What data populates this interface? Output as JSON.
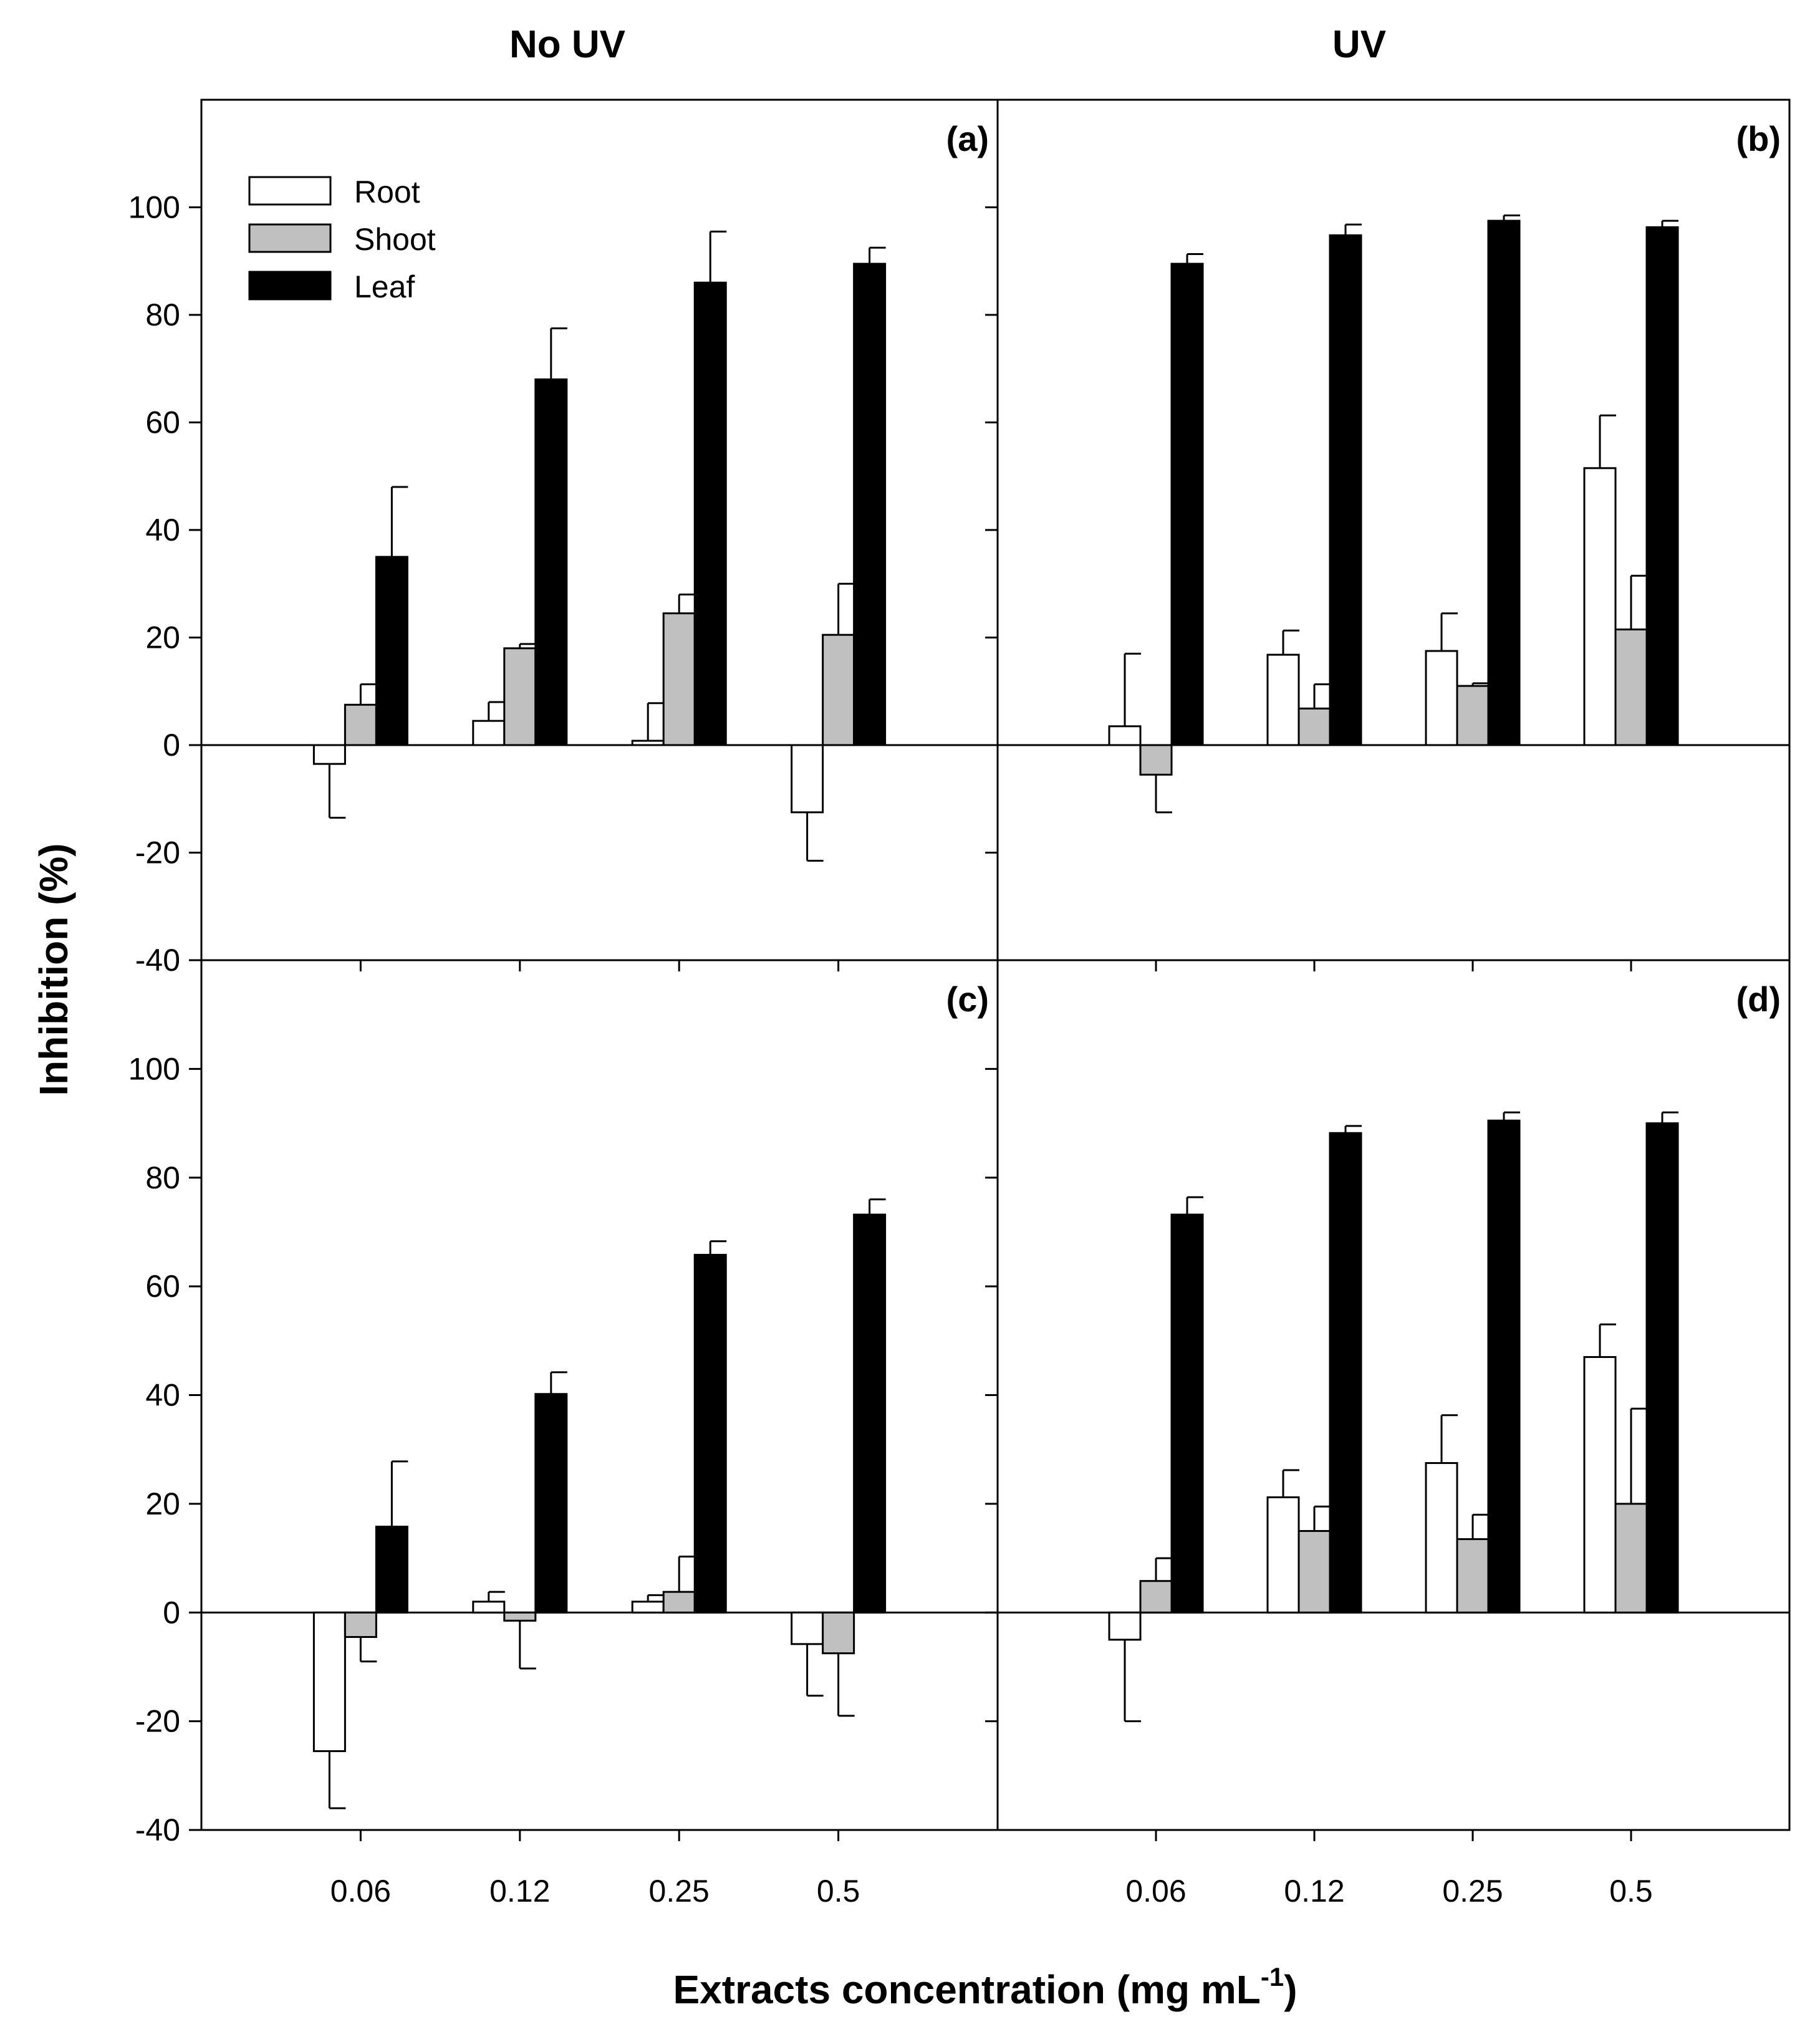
{
  "figure": {
    "col_titles": [
      "No UV",
      "UV"
    ],
    "ylabel": "Inhibition (%)",
    "xlabel_main": "Extracts concentration (mg mL",
    "xlabel_sup": "-1",
    "xlabel_close": ")"
  },
  "legend": {
    "items": [
      {
        "label": "Root",
        "color": "#ffffff"
      },
      {
        "label": "Shoot",
        "color": "#c0c0c0"
      },
      {
        "label": "Leaf",
        "color": "#000000"
      }
    ]
  },
  "chart_data": [
    {
      "type": "bar",
      "panel": "(a)",
      "column": "No UV",
      "categories": [
        "0.06",
        "0.12",
        "0.25",
        "0.5"
      ],
      "ylim": [
        -40,
        120
      ],
      "yticks": [
        -40,
        -20,
        0,
        20,
        40,
        60,
        80,
        100
      ],
      "series": [
        {
          "name": "Root",
          "values": [
            -3.5,
            4.5,
            0.8,
            -12.5
          ],
          "errors": [
            10,
            3.5,
            7,
            9
          ]
        },
        {
          "name": "Shoot",
          "values": [
            7.5,
            18,
            24.5,
            20.5
          ],
          "errors": [
            3.8,
            0.8,
            3.5,
            9.5
          ]
        },
        {
          "name": "Leaf",
          "values": [
            35,
            68,
            86,
            89.5
          ],
          "errors": [
            13,
            9.5,
            9.5,
            3
          ]
        }
      ]
    },
    {
      "type": "bar",
      "panel": "(b)",
      "column": "UV",
      "categories": [
        "0.06",
        "0.12",
        "0.25",
        "0.5"
      ],
      "ylim": [
        -40,
        120
      ],
      "yticks": [
        -40,
        -20,
        0,
        20,
        40,
        60,
        80,
        100
      ],
      "series": [
        {
          "name": "Root",
          "values": [
            3.5,
            16.8,
            17.5,
            51.5
          ],
          "errors": [
            13.5,
            4.5,
            7,
            9.8
          ]
        },
        {
          "name": "Shoot",
          "values": [
            -5.5,
            6.8,
            11,
            21.5
          ],
          "errors": [
            7,
            4.5,
            0.5,
            10
          ]
        },
        {
          "name": "Leaf",
          "values": [
            89.5,
            94.8,
            97.5,
            96.3
          ],
          "errors": [
            1.8,
            2,
            1,
            1.2
          ]
        }
      ]
    },
    {
      "type": "bar",
      "panel": "(c)",
      "column": "No UV",
      "categories": [
        "0.06",
        "0.12",
        "0.25",
        "0.5"
      ],
      "ylim": [
        -40,
        120
      ],
      "yticks": [
        -40,
        -20,
        0,
        20,
        40,
        60,
        80,
        100
      ],
      "series": [
        {
          "name": "Root",
          "values": [
            -25.5,
            2,
            2,
            -5.8
          ],
          "errors": [
            10.5,
            1.8,
            1.2,
            9.5
          ]
        },
        {
          "name": "Shoot",
          "values": [
            -4.5,
            -1.5,
            3.8,
            -7.5
          ],
          "errors": [
            4.5,
            8.8,
            6.5,
            11.5
          ]
        },
        {
          "name": "Leaf",
          "values": [
            15.8,
            40.2,
            65.8,
            73.2
          ],
          "errors": [
            12,
            4,
            2.5,
            2.8
          ]
        }
      ]
    },
    {
      "type": "bar",
      "panel": "(d)",
      "column": "UV",
      "categories": [
        "0.06",
        "0.12",
        "0.25",
        "0.5"
      ],
      "ylim": [
        -40,
        120
      ],
      "yticks": [
        -40,
        -20,
        0,
        20,
        40,
        60,
        80,
        100
      ],
      "series": [
        {
          "name": "Root",
          "values": [
            -5,
            21.2,
            27.5,
            47
          ],
          "errors": [
            15,
            5,
            8.8,
            6
          ]
        },
        {
          "name": "Shoot",
          "values": [
            5.8,
            15,
            13.5,
            20
          ],
          "errors": [
            4.2,
            4.5,
            4.5,
            17.5
          ]
        },
        {
          "name": "Leaf",
          "values": [
            73.2,
            88.2,
            90.5,
            90
          ],
          "errors": [
            3.2,
            1.3,
            1.5,
            2
          ]
        }
      ]
    }
  ]
}
